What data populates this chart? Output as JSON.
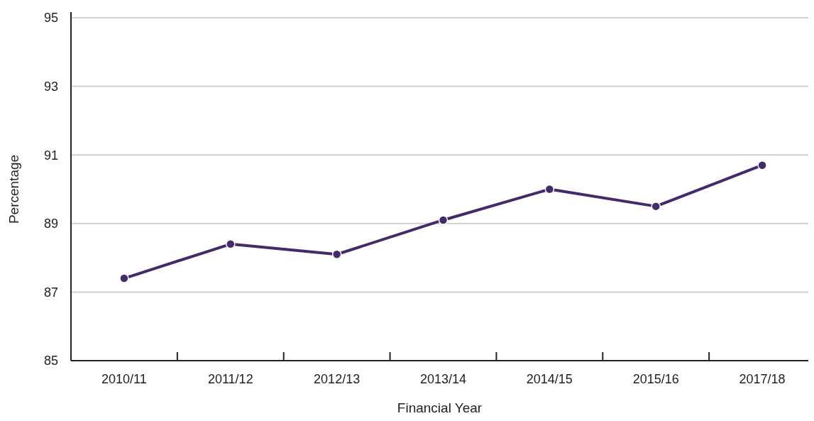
{
  "chart_data": {
    "type": "line",
    "xlabel": "Financial Year",
    "ylabel": "Percentage",
    "categories": [
      "2010/11",
      "2011/12",
      "2012/13",
      "2013/14",
      "2014/15",
      "2015/16",
      "2017/18"
    ],
    "series": [
      {
        "color": "#452a6b",
        "values": [
          87.4,
          88.4,
          88.1,
          89.1,
          90.0,
          89.5,
          90.7
        ]
      }
    ],
    "ylim": [
      85,
      95
    ],
    "yticks": [
      85,
      87,
      89,
      91,
      93,
      95
    ],
    "grid": "y",
    "marker": "circle",
    "line_style": "solid"
  }
}
